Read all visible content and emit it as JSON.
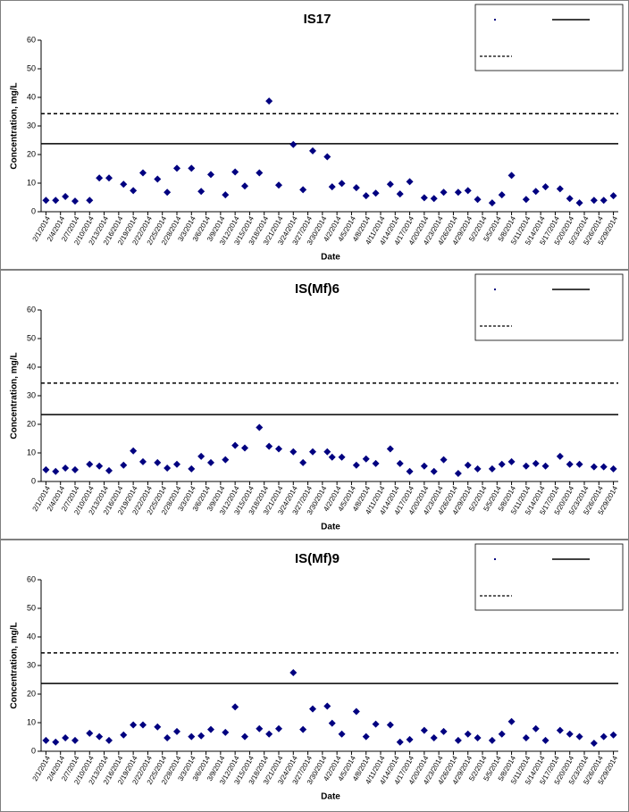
{
  "chart_data": [
    {
      "type": "scatter",
      "title": "IS17",
      "x_label": "Date",
      "y_label": "Concentration, mg/L",
      "color": "#000080",
      "x": [
        "2/1/2014",
        "2/3/2014",
        "2/5/2014",
        "2/7/2014",
        "2/10/2014",
        "2/12/2014",
        "2/14/2014",
        "2/17/2014",
        "2/19/2014",
        "2/21/2014",
        "2/24/2014",
        "2/26/2014",
        "2/28/2014",
        "3/3/2014",
        "3/5/2014",
        "3/7/2014",
        "3/10/2014",
        "3/12/2014",
        "3/14/2014",
        "3/17/2014",
        "3/19/2014",
        "3/21/2014",
        "3/24/2014",
        "3/26/2014",
        "3/28/2014",
        "3/31/2014",
        "4/1/2014",
        "4/3/2014",
        "4/6/2014",
        "4/8/2014",
        "4/10/2014",
        "4/13/2014",
        "4/15/2014",
        "4/17/2014",
        "4/20/2014",
        "4/22/2014",
        "4/24/2014",
        "4/27/2014",
        "4/29/2014",
        "5/1/2014",
        "5/4/2014",
        "5/6/2014",
        "5/8/2014",
        "5/11/2014",
        "5/13/2014",
        "5/15/2014",
        "5/18/2014",
        "5/20/2014",
        "5/22/2014",
        "5/25/2014",
        "5/27/2014",
        "5/29/2014"
      ],
      "values": [
        4.0,
        4.0,
        5.3,
        3.7,
        4.0,
        11.8,
        11.8,
        9.6,
        7.4,
        13.6,
        11.4,
        6.8,
        15.2,
        15.2,
        7.1,
        13.0,
        5.9,
        13.9,
        9.0,
        13.6,
        38.7,
        9.3,
        23.5,
        7.7,
        21.3,
        19.2,
        8.7,
        9.9,
        8.4,
        5.6,
        6.5,
        9.6,
        6.2,
        10.5,
        4.9,
        4.6,
        6.8,
        6.8,
        7.4,
        4.3,
        3.1,
        5.9,
        12.7,
        4.3,
        7.1,
        8.7,
        8.0,
        4.6,
        3.1,
        4.0,
        4.0,
        5.6
      ],
      "reference_lines": [
        {
          "value": 23.8,
          "style": "solid"
        },
        {
          "value": 34.3,
          "style": "dashed"
        }
      ],
      "xlim": [
        "1/31/2014",
        "5/30/2014"
      ],
      "xticks": [
        "2/1/2014",
        "2/4/2014",
        "2/7/2014",
        "2/10/2014",
        "2/13/2014",
        "2/16/2014",
        "2/19/2014",
        "2/22/2014",
        "2/25/2014",
        "2/28/2014",
        "3/3/2014",
        "3/6/2014",
        "3/9/2014",
        "3/12/2014",
        "3/15/2014",
        "3/18/2014",
        "3/21/2014",
        "3/24/2014",
        "3/27/2014",
        "3/30/2014",
        "4/2/2014",
        "4/5/2014",
        "4/8/2014",
        "4/11/2014",
        "4/14/2014",
        "4/17/2014",
        "4/20/2014",
        "4/23/2014",
        "4/26/2014",
        "4/29/2014",
        "5/2/2014",
        "5/5/2014",
        "5/8/2014",
        "5/11/2014",
        "5/14/2014",
        "5/17/2014",
        "5/20/2014",
        "5/23/2014",
        "5/26/2014",
        "5/29/2014"
      ],
      "ylim": [
        0,
        60
      ],
      "yticks": [
        0,
        10,
        20,
        30,
        40,
        50,
        60
      ],
      "grid": false
    },
    {
      "type": "scatter",
      "title": "IS(Mf)6",
      "x_label": "Date",
      "y_label": "Concentration, mg/L",
      "color": "#000080",
      "x": [
        "2/1/2014",
        "2/3/2014",
        "2/5/2014",
        "2/7/2014",
        "2/10/2014",
        "2/12/2014",
        "2/14/2014",
        "2/17/2014",
        "2/19/2014",
        "2/21/2014",
        "2/24/2014",
        "2/26/2014",
        "2/28/2014",
        "3/3/2014",
        "3/5/2014",
        "3/7/2014",
        "3/10/2014",
        "3/12/2014",
        "3/14/2014",
        "3/17/2014",
        "3/19/2014",
        "3/21/2014",
        "3/24/2014",
        "3/26/2014",
        "3/28/2014",
        "3/31/2014",
        "4/1/2014",
        "4/3/2014",
        "4/6/2014",
        "4/8/2014",
        "4/10/2014",
        "4/13/2014",
        "4/15/2014",
        "4/17/2014",
        "4/20/2014",
        "4/22/2014",
        "4/24/2014",
        "4/27/2014",
        "4/29/2014",
        "5/1/2014",
        "5/4/2014",
        "5/6/2014",
        "5/8/2014",
        "5/11/2014",
        "5/13/2014",
        "5/15/2014",
        "5/18/2014",
        "5/20/2014",
        "5/22/2014",
        "5/25/2014",
        "5/27/2014",
        "5/29/2014"
      ],
      "values": [
        4.1,
        3.5,
        4.7,
        4.1,
        6.0,
        5.4,
        3.8,
        5.7,
        10.7,
        6.9,
        6.6,
        4.7,
        6.0,
        4.4,
        8.8,
        6.6,
        7.6,
        12.6,
        11.7,
        18.9,
        12.3,
        11.4,
        10.4,
        6.6,
        10.4,
        10.4,
        8.5,
        8.5,
        5.7,
        7.9,
        6.3,
        11.4,
        6.3,
        3.5,
        5.4,
        3.5,
        7.6,
        2.8,
        5.7,
        4.4,
        4.4,
        6.0,
        6.9,
        5.4,
        6.3,
        5.4,
        8.8,
        6.0,
        6.0,
        5.1,
        5.1,
        4.4
      ],
      "reference_lines": [
        {
          "value": 23.4,
          "style": "solid"
        },
        {
          "value": 34.4,
          "style": "dashed"
        }
      ],
      "xlim": [
        "1/31/2014",
        "5/30/2014"
      ],
      "xticks": [
        "2/1/2014",
        "2/4/2014",
        "2/7/2014",
        "2/10/2014",
        "2/13/2014",
        "2/16/2014",
        "2/19/2014",
        "2/22/2014",
        "2/25/2014",
        "2/28/2014",
        "3/3/2014",
        "3/6/2014",
        "3/9/2014",
        "3/12/2014",
        "3/15/2014",
        "3/18/2014",
        "3/21/2014",
        "3/24/2014",
        "3/27/2014",
        "3/30/2014",
        "4/2/2014",
        "4/5/2014",
        "4/8/2014",
        "4/11/2014",
        "4/14/2014",
        "4/17/2014",
        "4/20/2014",
        "4/23/2014",
        "4/26/2014",
        "4/29/2014",
        "5/2/2014",
        "5/5/2014",
        "5/8/2014",
        "5/11/2014",
        "5/14/2014",
        "5/17/2014",
        "5/20/2014",
        "5/23/2014",
        "5/26/2014",
        "5/29/2014"
      ],
      "ylim": [
        0,
        60
      ],
      "yticks": [
        0,
        10,
        20,
        30,
        40,
        50,
        60
      ],
      "grid": false
    },
    {
      "type": "scatter",
      "title": "IS(Mf)9",
      "x_label": "Date",
      "y_label": "Concentration, mg/L",
      "color": "#000080",
      "x": [
        "2/1/2014",
        "2/3/2014",
        "2/5/2014",
        "2/7/2014",
        "2/10/2014",
        "2/12/2014",
        "2/14/2014",
        "2/17/2014",
        "2/19/2014",
        "2/21/2014",
        "2/24/2014",
        "2/26/2014",
        "2/28/2014",
        "3/3/2014",
        "3/5/2014",
        "3/7/2014",
        "3/10/2014",
        "3/12/2014",
        "3/14/2014",
        "3/17/2014",
        "3/19/2014",
        "3/21/2014",
        "3/24/2014",
        "3/26/2014",
        "3/28/2014",
        "3/31/2014",
        "4/1/2014",
        "4/3/2014",
        "4/6/2014",
        "4/8/2014",
        "4/10/2014",
        "4/13/2014",
        "4/15/2014",
        "4/17/2014",
        "4/20/2014",
        "4/22/2014",
        "4/24/2014",
        "4/27/2014",
        "4/29/2014",
        "5/1/2014",
        "5/4/2014",
        "5/6/2014",
        "5/8/2014",
        "5/11/2014",
        "5/13/2014",
        "5/15/2014",
        "5/18/2014",
        "5/20/2014",
        "5/22/2014",
        "5/25/2014",
        "5/27/2014",
        "5/29/2014"
      ],
      "values": [
        3.8,
        3.2,
        4.7,
        3.8,
        6.3,
        5.1,
        3.8,
        5.7,
        9.2,
        9.2,
        8.5,
        4.7,
        6.9,
        5.1,
        5.4,
        7.6,
        6.6,
        15.5,
        5.1,
        7.9,
        6.0,
        7.9,
        27.5,
        7.6,
        14.8,
        15.8,
        9.8,
        6.0,
        13.9,
        5.1,
        9.5,
        9.2,
        3.2,
        4.1,
        7.3,
        4.7,
        6.9,
        3.8,
        6.0,
        4.7,
        3.8,
        6.0,
        10.4,
        4.7,
        7.9,
        3.8,
        7.3,
        6.0,
        5.1,
        2.8,
        5.1,
        5.7
      ],
      "reference_lines": [
        {
          "value": 23.7,
          "style": "solid"
        },
        {
          "value": 34.4,
          "style": "dashed"
        }
      ],
      "xlim": [
        "1/31/2014",
        "5/30/2014"
      ],
      "xticks": [
        "2/1/2014",
        "2/4/2014",
        "2/7/2014",
        "2/10/2014",
        "2/13/2014",
        "2/16/2014",
        "2/19/2014",
        "2/22/2014",
        "2/25/2014",
        "2/28/2014",
        "3/3/2014",
        "3/6/2014",
        "3/9/2014",
        "3/12/2014",
        "3/15/2014",
        "3/18/2014",
        "3/21/2014",
        "3/24/2014",
        "3/27/2014",
        "3/30/2014",
        "4/2/2014",
        "4/5/2014",
        "4/8/2014",
        "4/11/2014",
        "4/14/2014",
        "4/17/2014",
        "4/20/2014",
        "4/23/2014",
        "4/26/2014",
        "4/29/2014",
        "5/2/2014",
        "5/5/2014",
        "5/8/2014",
        "5/11/2014",
        "5/14/2014",
        "5/17/2014",
        "5/20/2014",
        "5/23/2014",
        "5/26/2014",
        "5/29/2014"
      ],
      "ylim": [
        0,
        60
      ],
      "yticks": [
        0,
        10,
        20,
        30,
        40,
        50,
        60
      ],
      "grid": false
    }
  ]
}
